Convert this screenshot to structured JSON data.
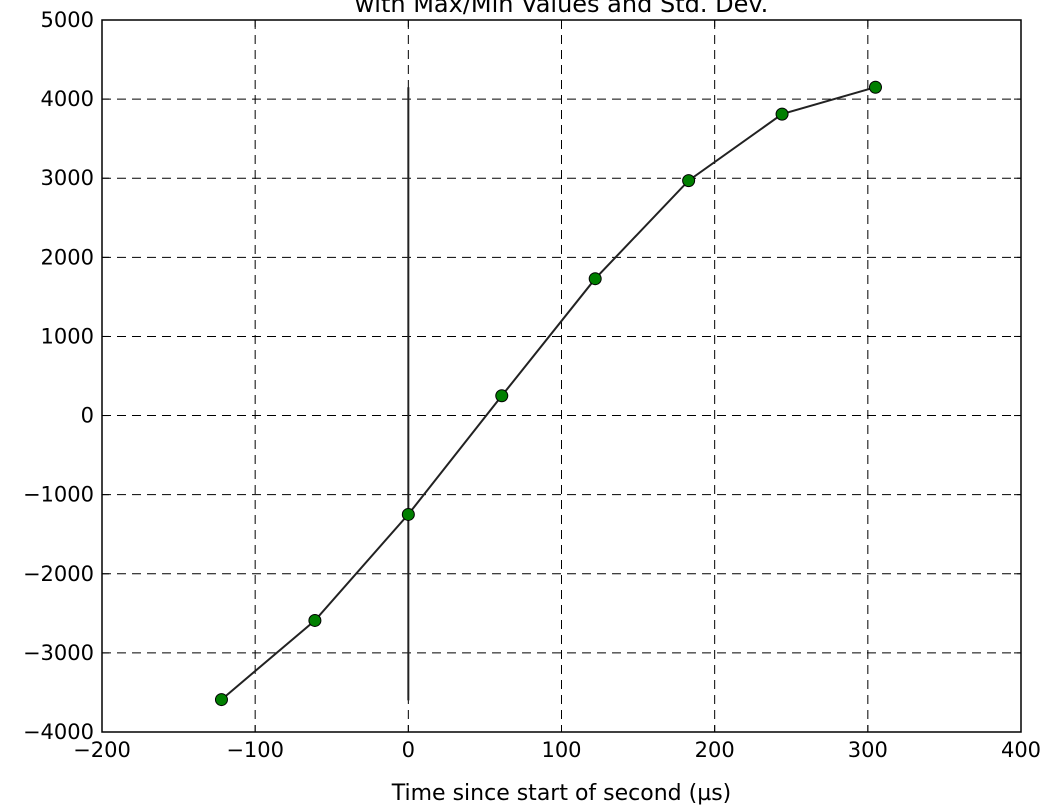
{
  "chart_data": {
    "type": "line",
    "title": "with Max/Min Values and Std. Dev.",
    "xlabel": "Time since start of second (µs)",
    "ylabel": "",
    "xlim": [
      -200,
      400
    ],
    "ylim": [
      -4000,
      5000
    ],
    "xticks": [
      -200,
      -100,
      0,
      100,
      200,
      300,
      400
    ],
    "yticks": [
      -4000,
      -3000,
      -2000,
      -1000,
      0,
      1000,
      2000,
      3000,
      4000,
      5000
    ],
    "xtick_labels": [
      "−200",
      "−100",
      "0",
      "100",
      "200",
      "300",
      "400"
    ],
    "ytick_labels": [
      "−4000",
      "−3000",
      "−2000",
      "−1000",
      "0",
      "1000",
      "2000",
      "3000",
      "4000",
      "5000"
    ],
    "grid": true,
    "series": [
      {
        "x": [
          -122,
          -61,
          0,
          61,
          122,
          183,
          244,
          305
        ],
        "y": [
          -3590,
          -2590,
          -1250,
          250,
          1730,
          2970,
          3810,
          4150
        ],
        "line_color": "#222222",
        "marker_color": "#007f00"
      }
    ],
    "error_bar": {
      "x": 0,
      "min": -3600,
      "max": 4150,
      "color": "#222222"
    }
  }
}
